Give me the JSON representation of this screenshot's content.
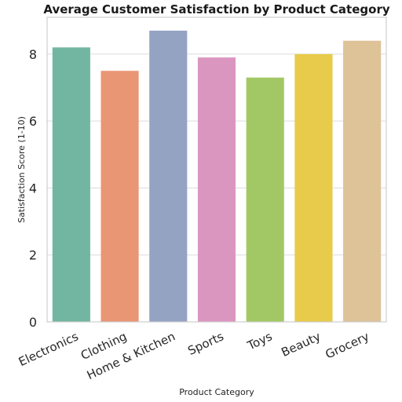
{
  "chart_data": {
    "type": "bar",
    "title": "Average Customer Satisfaction by Product Category",
    "xlabel": "Product Category",
    "ylabel": "Satisfaction Score (1-10)",
    "categories": [
      "Electronics",
      "Clothing",
      "Home & Kitchen",
      "Sports",
      "Toys",
      "Beauty",
      "Grocery"
    ],
    "values": [
      8.2,
      7.5,
      8.7,
      7.9,
      7.3,
      8.0,
      8.4
    ],
    "colors": [
      "#72b6a1",
      "#e99675",
      "#95a3c3",
      "#db96c0",
      "#a2c865",
      "#e8cb4a",
      "#dec298"
    ],
    "ylim": [
      0,
      9.1
    ],
    "yticks": [
      0,
      2,
      4,
      6,
      8
    ],
    "grid": true,
    "legend": "none"
  }
}
